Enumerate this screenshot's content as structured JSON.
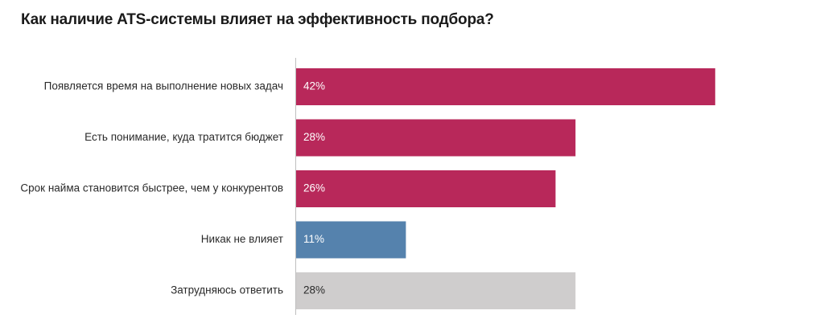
{
  "chart_data": {
    "type": "bar",
    "orientation": "horizontal",
    "title": "Как наличие ATS-системы влияет на эффективность подбора?",
    "categories": [
      "Появляется время на выполнение новых задач",
      "Есть понимание, куда тратится бюджет",
      "Срок найма становится быстрее, чем у конкурентов",
      "Никак не влияет",
      "Затрудняюсь ответить"
    ],
    "values": [
      42,
      28,
      26,
      11,
      28
    ],
    "value_labels": [
      "42%",
      "28%",
      "26%",
      "11%",
      "28%"
    ],
    "bar_colors": [
      "#b8285a",
      "#b8285a",
      "#b8285a",
      "#5582ad",
      "#cfcdcd"
    ],
    "label_colors": [
      "#ffffff",
      "#ffffff",
      "#ffffff",
      "#ffffff",
      "#2a2a2a"
    ],
    "xlim": [
      0,
      100
    ],
    "grid": false,
    "legend": false
  }
}
